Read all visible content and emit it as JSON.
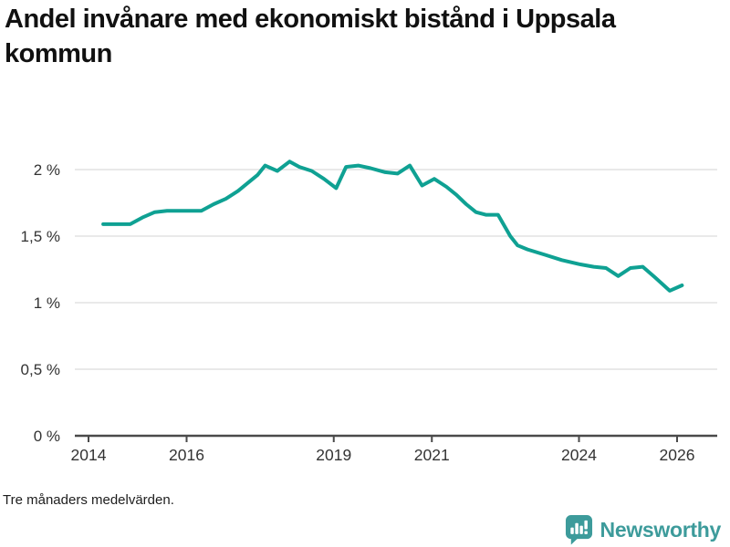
{
  "header": {
    "title": "Andel invånare med ekonomiskt bistånd i Uppsala kommun"
  },
  "footer": {
    "note": "Tre månaders medelvärden.",
    "brand": "Newsworthy"
  },
  "colors": {
    "line": "#0fa193",
    "grid": "#dcdcdc",
    "axis": "#4a4a4a",
    "tick_text": "#333333",
    "title_text": "#111111",
    "brand_teal": "#3d9b9b"
  },
  "chart_data": {
    "type": "line",
    "title": "Andel invånare med ekonomiskt bistånd i Uppsala kommun",
    "subtitle_note": "Tre månaders medelvärden.",
    "unit": "%",
    "grid": true,
    "legend_position": "none",
    "xlim": [
      2013.72,
      2026.82
    ],
    "ylim": [
      0,
      2.15
    ],
    "x_ticks": [
      {
        "v": 2014,
        "label": "2014"
      },
      {
        "v": 2016,
        "label": "2016"
      },
      {
        "v": 2019,
        "label": "2019"
      },
      {
        "v": 2021,
        "label": "2021"
      },
      {
        "v": 2024,
        "label": "2024"
      },
      {
        "v": 2026,
        "label": "2026"
      }
    ],
    "y_ticks": [
      {
        "v": 0,
        "label": "0 %"
      },
      {
        "v": 0.5,
        "label": "0,5 %"
      },
      {
        "v": 1,
        "label": "1 %"
      },
      {
        "v": 1.5,
        "label": "1,5 %"
      },
      {
        "v": 2,
        "label": "2 %"
      }
    ],
    "series": [
      {
        "name": "Andel invånare med ekonomiskt bistånd",
        "x": [
          2014.3,
          2014.6,
          2014.85,
          2015.1,
          2015.35,
          2015.6,
          2015.85,
          2016.1,
          2016.3,
          2016.55,
          2016.8,
          2017.05,
          2017.25,
          2017.45,
          2017.6,
          2017.85,
          2018.1,
          2018.3,
          2018.55,
          2018.8,
          2019.05,
          2019.25,
          2019.5,
          2019.75,
          2020.05,
          2020.3,
          2020.55,
          2020.8,
          2021.05,
          2021.3,
          2021.5,
          2021.7,
          2021.9,
          2022.1,
          2022.35,
          2022.6,
          2022.75,
          2022.95,
          2023.3,
          2023.65,
          2024.0,
          2024.3,
          2024.55,
          2024.8,
          2025.05,
          2025.3,
          2025.55,
          2025.85,
          2026.1
        ],
        "values": [
          1.59,
          1.59,
          1.59,
          1.64,
          1.68,
          1.69,
          1.69,
          1.69,
          1.69,
          1.74,
          1.78,
          1.84,
          1.9,
          1.96,
          2.03,
          1.99,
          2.06,
          2.02,
          1.99,
          1.93,
          1.86,
          2.02,
          2.03,
          2.01,
          1.98,
          1.97,
          2.03,
          1.88,
          1.93,
          1.87,
          1.81,
          1.74,
          1.68,
          1.66,
          1.66,
          1.5,
          1.43,
          1.4,
          1.36,
          1.32,
          1.29,
          1.27,
          1.26,
          1.2,
          1.26,
          1.27,
          1.19,
          1.09,
          1.13
        ]
      }
    ]
  }
}
